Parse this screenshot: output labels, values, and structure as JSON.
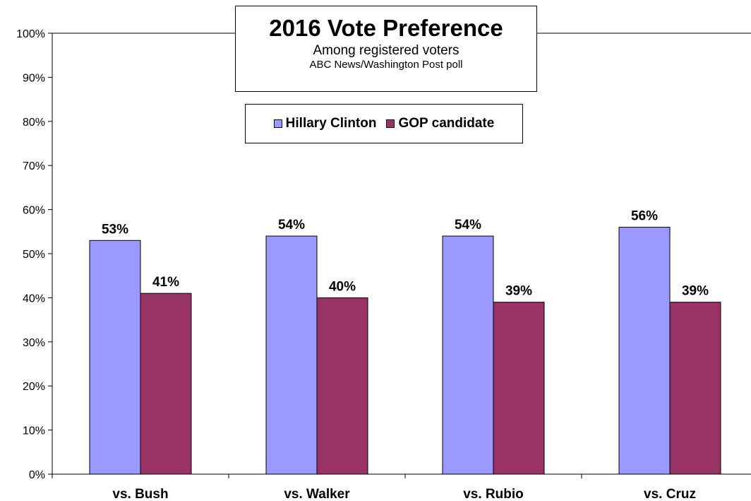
{
  "colors": {
    "clinton": "#9999ff",
    "gop": "#993366"
  },
  "chart_data": {
    "type": "bar",
    "title": "2016 Vote Preference",
    "subtitle": "Among registered voters",
    "source": "ABC News/Washington  Post poll",
    "categories": [
      "vs. Bush",
      "vs. Walker",
      "vs. Rubio",
      "vs. Cruz"
    ],
    "series": [
      {
        "name": "Hillary Clinton",
        "values": [
          53,
          54,
          54,
          56
        ],
        "labels": [
          "53%",
          "54%",
          "54%",
          "56%"
        ]
      },
      {
        "name": "GOP candidate",
        "values": [
          41,
          40,
          39,
          39
        ],
        "labels": [
          "41%",
          "40%",
          "39%",
          "39%"
        ]
      }
    ],
    "ylim": [
      0,
      100
    ],
    "yticks": [
      "0%",
      "10%",
      "20%",
      "30%",
      "40%",
      "50%",
      "60%",
      "70%",
      "80%",
      "90%",
      "100%"
    ],
    "grid": false,
    "legend_position": "top-center"
  }
}
